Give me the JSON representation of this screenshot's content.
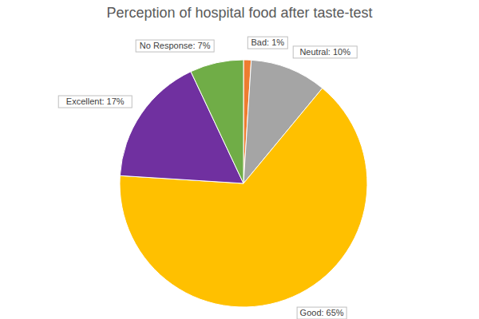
{
  "chart_data": {
    "type": "pie",
    "title": "Perception of hospital food after taste-test",
    "categories": [
      "Bad",
      "Neutral",
      "Good",
      "Excellent",
      "No Response"
    ],
    "values": [
      1,
      10,
      65,
      17,
      7
    ],
    "value_labels": [
      "Bad: 1%",
      "Neutral: 10%",
      "Good: 65%",
      "Excellent: 17%",
      "No Response: 7%"
    ],
    "colors": [
      "#ED7D31",
      "#A5A5A5",
      "#FFC000",
      "#7030A0",
      "#70AD47"
    ],
    "data_labels": true
  }
}
